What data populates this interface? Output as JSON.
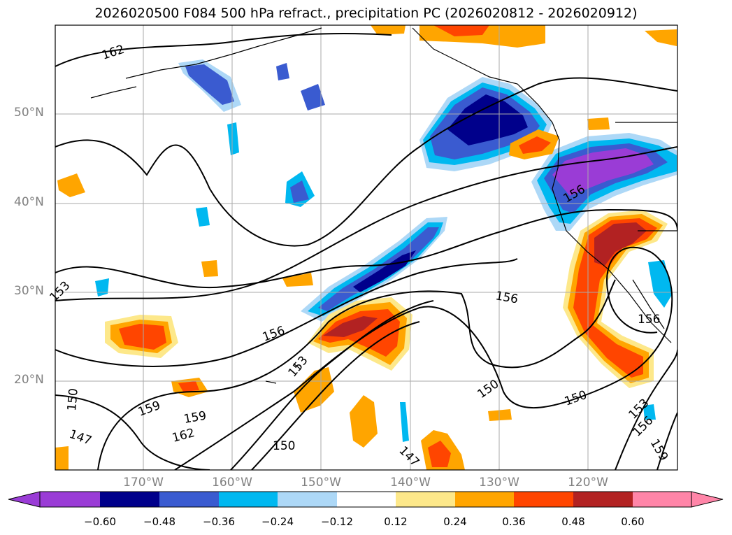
{
  "title": "2026020500 F084 500 hPa refract., precipitation PC (2026020812 - 2026020912)",
  "map": {
    "lat_labels": [
      "50°N",
      "40°N",
      "30°N",
      "20°N"
    ],
    "lon_labels": [
      "170°W",
      "160°W",
      "150°W",
      "140°W",
      "130°W",
      "120°W"
    ],
    "contour_labels": [
      "162",
      "153",
      "156",
      "153",
      "156",
      "150",
      "150",
      "147",
      "159",
      "159",
      "162",
      "150",
      "156",
      "156",
      "150",
      "156",
      "153",
      "159",
      "147"
    ],
    "colors": {
      "purple": "#9a3cd6",
      "navy": "#00008b",
      "royal": "#3a5bd0",
      "blue": "#00b8f0",
      "lightblue": "#add8f7",
      "yellow": "#fde88a",
      "orange": "#ffa500",
      "redorange": "#ff4500",
      "darkred": "#b22222",
      "pink": "#ff85a8"
    }
  },
  "colorbar": {
    "labels": [
      "−0.60",
      "−0.48",
      "−0.36",
      "−0.24",
      "−0.12",
      "0.12",
      "0.24",
      "0.36",
      "0.48",
      "0.60"
    ],
    "colors": [
      "#9a3cd6",
      "#00008b",
      "#3a5bd0",
      "#00b8f0",
      "#add8f7",
      "#ffffff",
      "#fde88a",
      "#ffa500",
      "#ff4500",
      "#b22222",
      "#ff85a8"
    ]
  }
}
